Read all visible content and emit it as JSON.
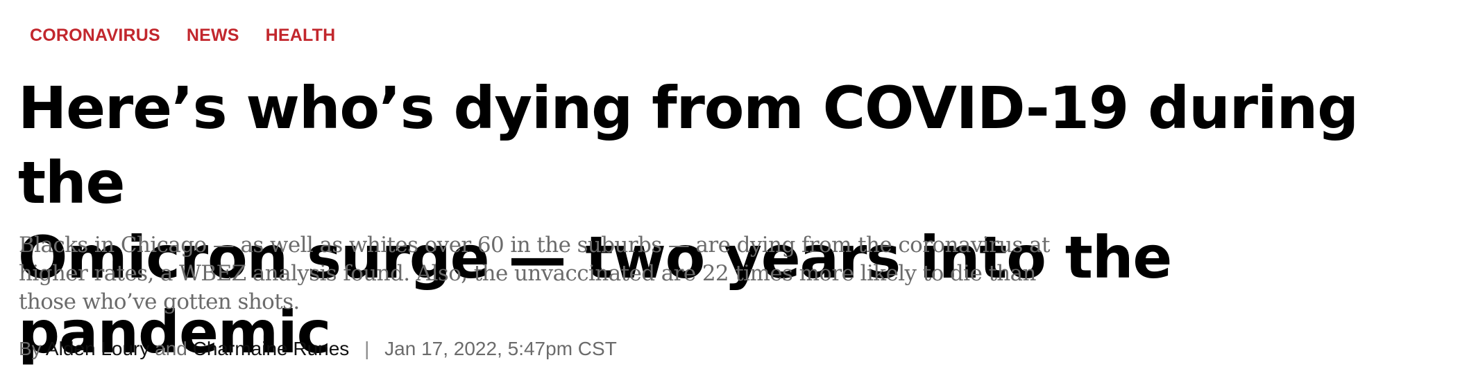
{
  "section_tags": [
    "CORONAVIRUS",
    "NEWS",
    "HEALTH"
  ],
  "headline": {
    "line1": "Here’s who’s dying from COVID-19 during the",
    "line2": "Omicron surge — two years into the pandemic"
  },
  "dek": {
    "line1": "Blacks in Chicago — as well as whites over 60 in the suburbs — are dying from the coronavirus at",
    "line2": "higher rates, a WBEZ analysis found. Also, the unvaccinated are 22 times more likely to die than",
    "line3": "those who’ve gotten shots."
  },
  "byline": {
    "prefix": "By",
    "author1": "Alden Loury",
    "conjunction": "and",
    "author2": "Charmaine Runes",
    "separator": "|",
    "date": "Jan 17, 2022, 5:47pm CST"
  },
  "colors": {
    "tag": "#c2272d",
    "headline": "#000000",
    "dek": "#6b6b6b"
  }
}
